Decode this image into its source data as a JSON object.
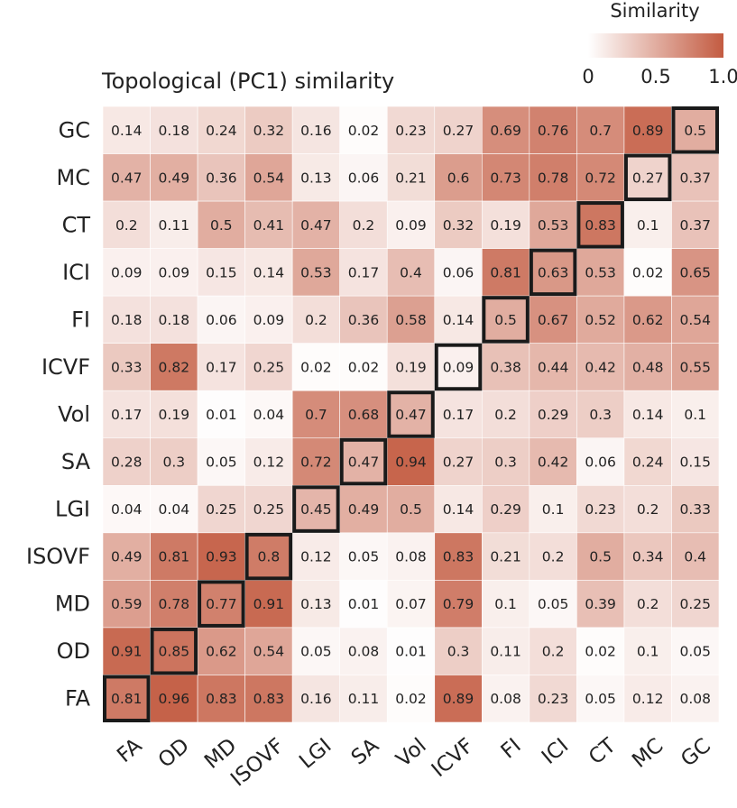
{
  "chart_data": {
    "type": "heatmap",
    "title": "Topological (PC1) similarity",
    "x_labels": [
      "FA",
      "OD",
      "MD",
      "ISOVF",
      "LGI",
      "SA",
      "Vol",
      "ICVF",
      "FI",
      "ICI",
      "CT",
      "MC",
      "GC"
    ],
    "y_labels": [
      "GC",
      "MC",
      "CT",
      "ICI",
      "FI",
      "ICVF",
      "Vol",
      "SA",
      "LGI",
      "ISOVF",
      "MD",
      "OD",
      "FA"
    ],
    "values": [
      [
        0.14,
        0.18,
        0.24,
        0.32,
        0.16,
        0.02,
        0.23,
        0.27,
        0.69,
        0.76,
        0.7,
        0.89,
        0.5
      ],
      [
        0.47,
        0.49,
        0.36,
        0.54,
        0.13,
        0.06,
        0.21,
        0.6,
        0.73,
        0.78,
        0.72,
        0.27,
        0.37
      ],
      [
        0.2,
        0.11,
        0.5,
        0.41,
        0.47,
        0.2,
        0.09,
        0.32,
        0.19,
        0.53,
        0.83,
        0.1,
        0.37
      ],
      [
        0.09,
        0.09,
        0.15,
        0.14,
        0.53,
        0.17,
        0.4,
        0.06,
        0.81,
        0.63,
        0.53,
        0.02,
        0.65
      ],
      [
        0.18,
        0.18,
        0.06,
        0.09,
        0.2,
        0.36,
        0.58,
        0.14,
        0.5,
        0.67,
        0.52,
        0.62,
        0.54
      ],
      [
        0.33,
        0.82,
        0.17,
        0.25,
        0.02,
        0.02,
        0.19,
        0.09,
        0.38,
        0.44,
        0.42,
        0.48,
        0.55
      ],
      [
        0.17,
        0.19,
        0.01,
        0.04,
        0.7,
        0.68,
        0.47,
        0.17,
        0.2,
        0.29,
        0.3,
        0.14,
        0.1
      ],
      [
        0.28,
        0.3,
        0.05,
        0.12,
        0.72,
        0.47,
        0.94,
        0.27,
        0.3,
        0.42,
        0.06,
        0.24,
        0.15
      ],
      [
        0.04,
        0.04,
        0.25,
        0.25,
        0.45,
        0.49,
        0.5,
        0.14,
        0.29,
        0.1,
        0.23,
        0.2,
        0.33
      ],
      [
        0.49,
        0.81,
        0.93,
        0.8,
        0.12,
        0.05,
        0.08,
        0.83,
        0.21,
        0.2,
        0.5,
        0.34,
        0.4
      ],
      [
        0.59,
        0.78,
        0.77,
        0.91,
        0.13,
        0.01,
        0.07,
        0.79,
        0.1,
        0.05,
        0.39,
        0.2,
        0.25
      ],
      [
        0.91,
        0.85,
        0.62,
        0.54,
        0.05,
        0.08,
        0.01,
        0.3,
        0.11,
        0.2,
        0.02,
        0.1,
        0.05
      ],
      [
        0.81,
        0.96,
        0.83,
        0.83,
        0.16,
        0.11,
        0.02,
        0.89,
        0.08,
        0.23,
        0.05,
        0.12,
        0.08
      ]
    ],
    "color_range": [
      0,
      1.0
    ],
    "colorbar": {
      "title": "Similarity",
      "tick_labels": [
        "0",
        "0.5",
        "1.0"
      ],
      "tick_values": [
        0,
        0.5,
        1.0
      ],
      "low_color": "#ffffff",
      "high_color": "#c35b41"
    },
    "highlight": "diagonal cells outlined in black",
    "outline_color": "#1a1a1a"
  }
}
